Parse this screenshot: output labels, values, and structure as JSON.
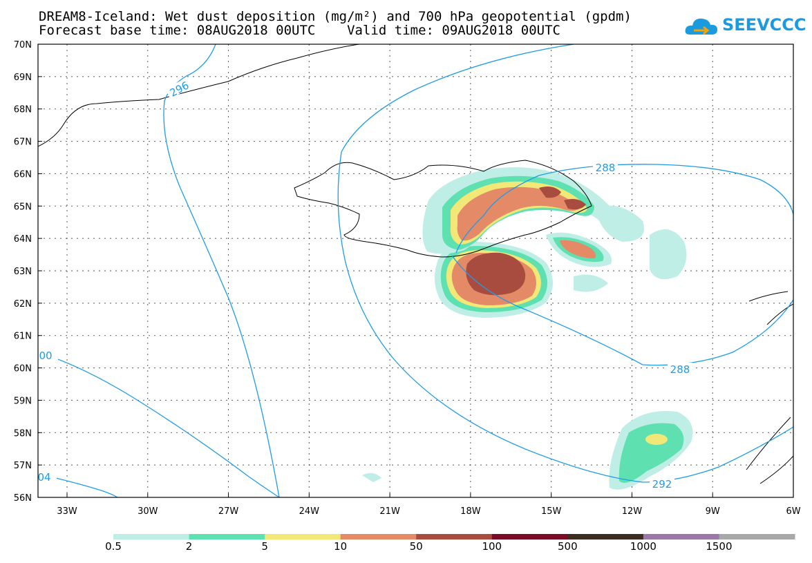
{
  "title": {
    "line1": "DREAM8-Iceland: Wet dust deposition (mg/m²) and 700 hPa geopotential (gpdm)",
    "line2": "Forecast base time: 08AUG2018 00UTC    Valid time: 09AUG2018 00UTC"
  },
  "logo": {
    "text": "SEEVCCC",
    "icon": "cloud-icon",
    "color": "#1a9be0"
  },
  "map": {
    "lat_labels": [
      "70N",
      "69N",
      "68N",
      "67N",
      "66N",
      "65N",
      "64N",
      "63N",
      "62N",
      "61N",
      "60N",
      "59N",
      "58N",
      "57N",
      "56N"
    ],
    "lon_labels": [
      "33W",
      "30W",
      "27W",
      "24W",
      "21W",
      "18W",
      "15W",
      "12W",
      "9W",
      "6W"
    ],
    "contour_color": "#1e9be8",
    "contour_labels": [
      "296",
      "288",
      "288",
      "292",
      "00",
      "04"
    ]
  },
  "colorbar": {
    "colors": [
      "#bfeee6",
      "#5ee0b0",
      "#f2e878",
      "#e48a66",
      "#a84c40",
      "#7a0c28",
      "#3c2c20",
      "#9c78a8",
      "#a8a8a8"
    ],
    "labels": [
      "0.5",
      "2",
      "5",
      "10",
      "50",
      "100",
      "500",
      "1000",
      "1500"
    ]
  }
}
